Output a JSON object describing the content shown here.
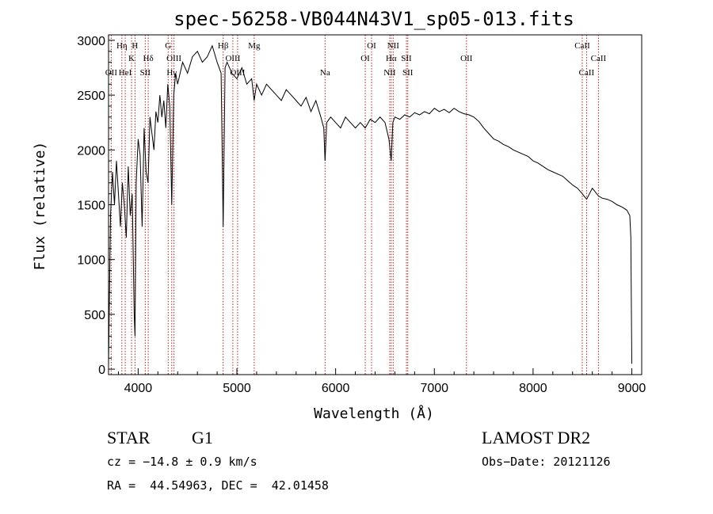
{
  "chart_data": {
    "type": "line",
    "title": "spec-56258-VB044N43V1_sp05-013.fits",
    "xlabel": "Wavelength (Å)",
    "ylabel": "Flux (relative)",
    "xlim": [
      3700,
      9100
    ],
    "ylim": [
      -50,
      3050
    ],
    "xticks": [
      4000,
      5000,
      6000,
      7000,
      8000,
      9000
    ],
    "yticks": [
      0,
      500,
      1000,
      1500,
      2000,
      2500,
      3000
    ],
    "series": [
      {
        "name": "spectrum",
        "x": [
          3700,
          3720,
          3740,
          3760,
          3780,
          3800,
          3820,
          3840,
          3860,
          3880,
          3900,
          3920,
          3940,
          3960,
          3968,
          3980,
          4000,
          4020,
          4040,
          4060,
          4080,
          4100,
          4120,
          4140,
          4160,
          4180,
          4200,
          4220,
          4240,
          4260,
          4280,
          4300,
          4320,
          4340,
          4360,
          4380,
          4400,
          4450,
          4500,
          4550,
          4600,
          4650,
          4700,
          4750,
          4800,
          4840,
          4861,
          4880,
          4900,
          4950,
          5000,
          5050,
          5100,
          5150,
          5175,
          5200,
          5250,
          5300,
          5350,
          5400,
          5450,
          5500,
          5550,
          5600,
          5650,
          5700,
          5750,
          5800,
          5850,
          5880,
          5893,
          5910,
          5950,
          6000,
          6050,
          6100,
          6150,
          6200,
          6250,
          6300,
          6350,
          6400,
          6450,
          6500,
          6540,
          6563,
          6580,
          6600,
          6650,
          6700,
          6750,
          6800,
          6850,
          6900,
          6950,
          7000,
          7050,
          7100,
          7150,
          7200,
          7250,
          7300,
          7350,
          7400,
          7450,
          7500,
          7550,
          7600,
          7650,
          7700,
          7750,
          7800,
          7850,
          7900,
          7950,
          8000,
          8050,
          8100,
          8150,
          8200,
          8250,
          8300,
          8350,
          8400,
          8450,
          8498,
          8542,
          8600,
          8662,
          8700,
          8750,
          8800,
          8850,
          8900,
          8950,
          8980,
          8990,
          9000
        ],
        "values": [
          50,
          1400,
          1800,
          1500,
          1900,
          1600,
          1300,
          1700,
          1500,
          1200,
          1850,
          1400,
          1600,
          500,
          300,
          1700,
          2100,
          1950,
          1300,
          2200,
          1800,
          1700,
          2300,
          2150,
          2000,
          2350,
          2250,
          2500,
          2300,
          2450,
          2200,
          2600,
          2400,
          1500,
          2500,
          2700,
          2600,
          2800,
          2700,
          2850,
          2900,
          2800,
          2850,
          2950,
          2800,
          2700,
          1300,
          2750,
          2800,
          2700,
          2650,
          2750,
          2600,
          2650,
          2450,
          2600,
          2500,
          2600,
          2550,
          2500,
          2450,
          2550,
          2500,
          2450,
          2400,
          2480,
          2350,
          2450,
          2300,
          2200,
          1900,
          2250,
          2300,
          2250,
          2200,
          2300,
          2250,
          2200,
          2250,
          2200,
          2280,
          2250,
          2300,
          2250,
          2100,
          1900,
          2250,
          2300,
          2280,
          2320,
          2300,
          2340,
          2320,
          2350,
          2330,
          2380,
          2350,
          2370,
          2340,
          2380,
          2350,
          2330,
          2320,
          2300,
          2260,
          2200,
          2150,
          2100,
          2080,
          2050,
          2030,
          2000,
          1980,
          1960,
          1940,
          1900,
          1880,
          1850,
          1820,
          1800,
          1780,
          1760,
          1720,
          1680,
          1650,
          1600,
          1550,
          1650,
          1580,
          1560,
          1550,
          1530,
          1500,
          1480,
          1450,
          1400,
          1200,
          50
        ]
      }
    ],
    "lines": [
      {
        "wavelength": 3727,
        "label": "OII",
        "row": 3
      },
      {
        "wavelength": 3835,
        "label": "Hη",
        "row": 1
      },
      {
        "wavelength": 3869,
        "label": "HeI",
        "row": 3
      },
      {
        "wavelength": 3933,
        "label": "K",
        "row": 2
      },
      {
        "wavelength": 3968,
        "label": "H",
        "row": 1
      },
      {
        "wavelength": 4072,
        "label": "SII",
        "row": 3
      },
      {
        "wavelength": 4102,
        "label": "Hδ",
        "row": 2
      },
      {
        "wavelength": 4304,
        "label": "G",
        "row": 1
      },
      {
        "wavelength": 4340,
        "label": "Hγ",
        "row": 3
      },
      {
        "wavelength": 4363,
        "label": "OIII",
        "row": 2
      },
      {
        "wavelength": 4861,
        "label": "Hβ",
        "row": 1
      },
      {
        "wavelength": 4959,
        "label": "OIII",
        "row": 2
      },
      {
        "wavelength": 5007,
        "label": "OIII",
        "row": 3
      },
      {
        "wavelength": 5175,
        "label": "Mg",
        "row": 1
      },
      {
        "wavelength": 5893,
        "label": "Na",
        "row": 3
      },
      {
        "wavelength": 6300,
        "label": "OI",
        "row": 2
      },
      {
        "wavelength": 6364,
        "label": "OI",
        "row": 1
      },
      {
        "wavelength": 6548,
        "label": "NII",
        "row": 3
      },
      {
        "wavelength": 6563,
        "label": "Hα",
        "row": 2
      },
      {
        "wavelength": 6583,
        "label": "NII",
        "row": 1
      },
      {
        "wavelength": 6717,
        "label": "SII",
        "row": 2
      },
      {
        "wavelength": 6731,
        "label": "SII",
        "row": 3
      },
      {
        "wavelength": 7325,
        "label": "OII",
        "row": 2
      },
      {
        "wavelength": 8498,
        "label": "CaII",
        "row": 1
      },
      {
        "wavelength": 8542,
        "label": "CaII",
        "row": 3
      },
      {
        "wavelength": 8662,
        "label": "CaII",
        "row": 2
      }
    ],
    "line_color": "#b22222"
  },
  "info": {
    "object_class": "STAR",
    "subclass": "G1",
    "survey": "LAMOST DR2",
    "redshift": "cz = −14.8 ± 0.9 km/s",
    "obs_date": "Obs−Date: 20121126",
    "coords": "RA =  44.54963, DEC =  42.01458"
  }
}
